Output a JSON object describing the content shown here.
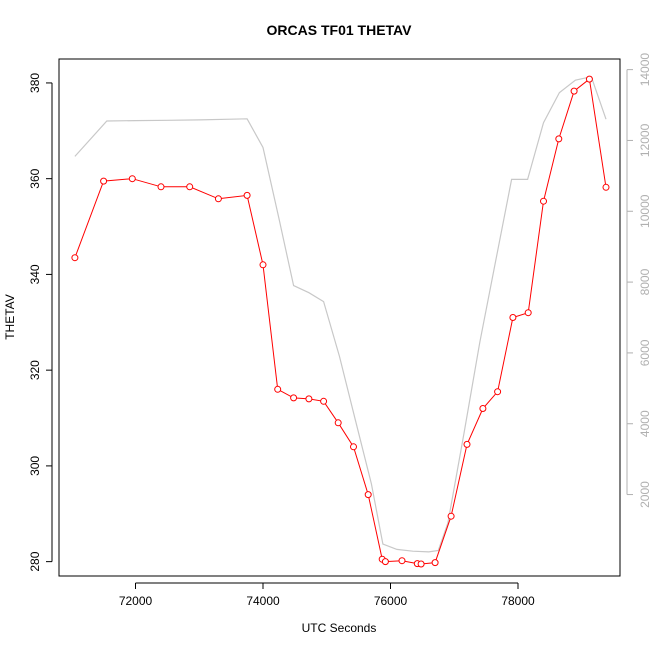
{
  "chart_data": {
    "type": "line",
    "title": "ORCAS TF01 THETAV",
    "xlabel": "UTC Seconds",
    "ylabel": "THETAV",
    "xlim": [
      70800,
      79600
    ],
    "ylim": [
      277,
      385
    ],
    "y2lim": [
      -300,
      14300
    ],
    "x_ticks": [
      72000,
      74000,
      76000,
      78000
    ],
    "y_ticks": [
      280,
      300,
      320,
      340,
      360,
      380
    ],
    "y2_ticks": [
      2000,
      4000,
      6000,
      8000,
      10000,
      12000,
      14000
    ],
    "series": [
      {
        "role": "primary",
        "color": "#ff0000",
        "marker": "circle",
        "x": [
          71050,
          71500,
          71950,
          72400,
          72850,
          73300,
          73750,
          74000,
          74230,
          74480,
          74720,
          74950,
          75180,
          75420,
          75650,
          75870,
          75920,
          76180,
          76420,
          76480,
          76700,
          76950,
          77200,
          77450,
          77680,
          77920,
          78160,
          78400,
          78640,
          78880,
          79120,
          79380
        ],
        "y": [
          343.5,
          359.5,
          360.0,
          358.3,
          358.3,
          355.8,
          356.5,
          342.0,
          316.0,
          314.2,
          314.0,
          313.5,
          309.0,
          304.0,
          294.0,
          280.5,
          280.0,
          280.2,
          279.6,
          279.5,
          279.8,
          289.5,
          304.5,
          312.0,
          315.5,
          331.0,
          332.0,
          355.3,
          368.3,
          378.3,
          380.8,
          358.2
        ]
      },
      {
        "role": "secondary",
        "color": "#c8c8c8",
        "marker": "none",
        "x": [
          71050,
          71550,
          72000,
          72500,
          73000,
          73500,
          73750,
          74000,
          74250,
          74480,
          74720,
          74950,
          75200,
          75450,
          75700,
          75880,
          76100,
          76350,
          76600,
          76750,
          76900,
          77150,
          77400,
          77650,
          77900,
          78150,
          78400,
          78650,
          78900,
          79150,
          79380
        ],
        "y": [
          11550,
          12550,
          12560,
          12570,
          12580,
          12600,
          12610,
          11800,
          9800,
          7900,
          7700,
          7450,
          5900,
          4100,
          2300,
          600,
          450,
          400,
          380,
          420,
          1200,
          3700,
          6300,
          8600,
          10900,
          10900,
          12500,
          13350,
          13700,
          13800,
          12600
        ]
      }
    ]
  }
}
